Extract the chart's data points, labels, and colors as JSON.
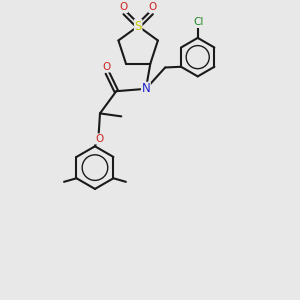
{
  "bg_color": "#e8e8e8",
  "bond_color": "#1a1a1a",
  "S_color": "#cccc00",
  "N_color": "#2222cc",
  "O_color": "#cc2222",
  "Cl_color": "#228822",
  "lw": 1.5,
  "figsize": [
    3.0,
    3.0
  ],
  "dpi": 100,
  "xlim": [
    0,
    10
  ],
  "ylim": [
    0,
    10
  ]
}
